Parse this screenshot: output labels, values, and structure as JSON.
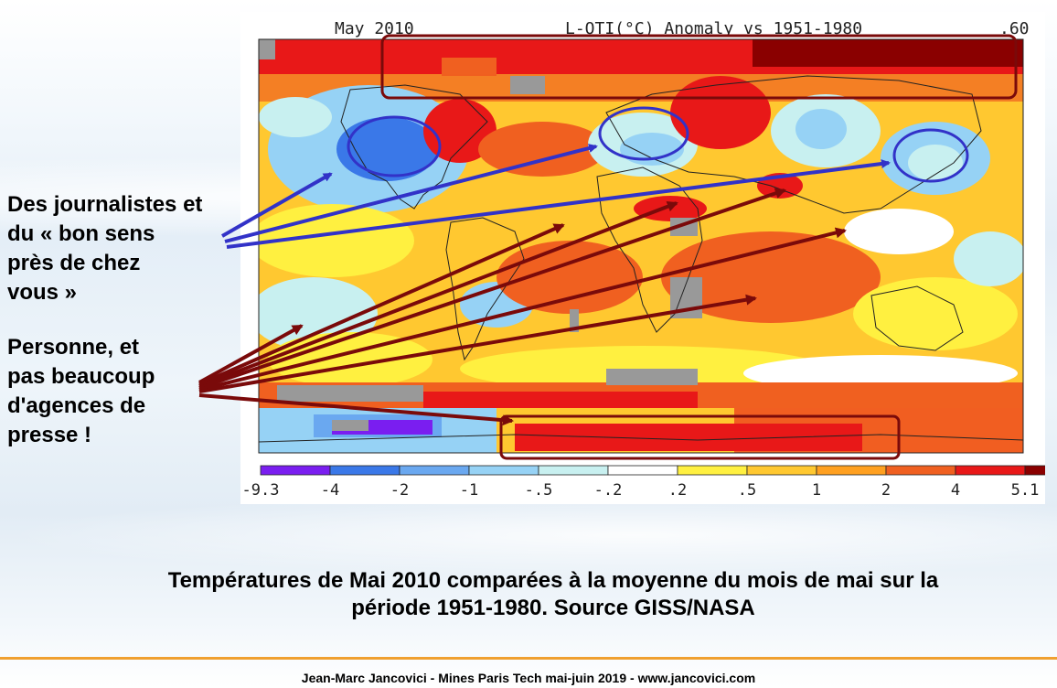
{
  "map": {
    "title_left": "May 2010",
    "title_right": "L-OTI(°C) Anomaly vs 1951-1980",
    "global_value": ".60",
    "legend": {
      "ticks": [
        "-9.3",
        "-4",
        "-2",
        "-1",
        "-.5",
        "-.2",
        ".2",
        ".5",
        "1",
        "2",
        "4",
        "5.1"
      ],
      "colors": [
        "#7a1ef0",
        "#3a78e8",
        "#6aa8f0",
        "#96d2f5",
        "#c8f0f0",
        "#ffffff",
        "#fff040",
        "#ffc830",
        "#ffa020",
        "#f06020",
        "#e81818",
        "#8a0000"
      ]
    },
    "no_data_color": "#999999"
  },
  "annotations": {
    "journalists_lines": [
      "Des journalistes et",
      "du « bon sens",
      "près de chez",
      "vous »"
    ],
    "personne_lines": [
      "Personne, et",
      "pas beaucoup",
      "d'agences de",
      "presse !"
    ],
    "blue_circle_color": "#3232c8",
    "red_arrow_color": "#7a0a0a"
  },
  "caption": {
    "line1": "Températures de Mai 2010 comparées à la moyenne du mois de mai sur la",
    "line2": "période 1951-1980. Source GISS/NASA"
  },
  "footer": {
    "text": "Jean-Marc Jancovici - Mines Paris Tech mai-juin 2019 - www.jancovici.com"
  }
}
